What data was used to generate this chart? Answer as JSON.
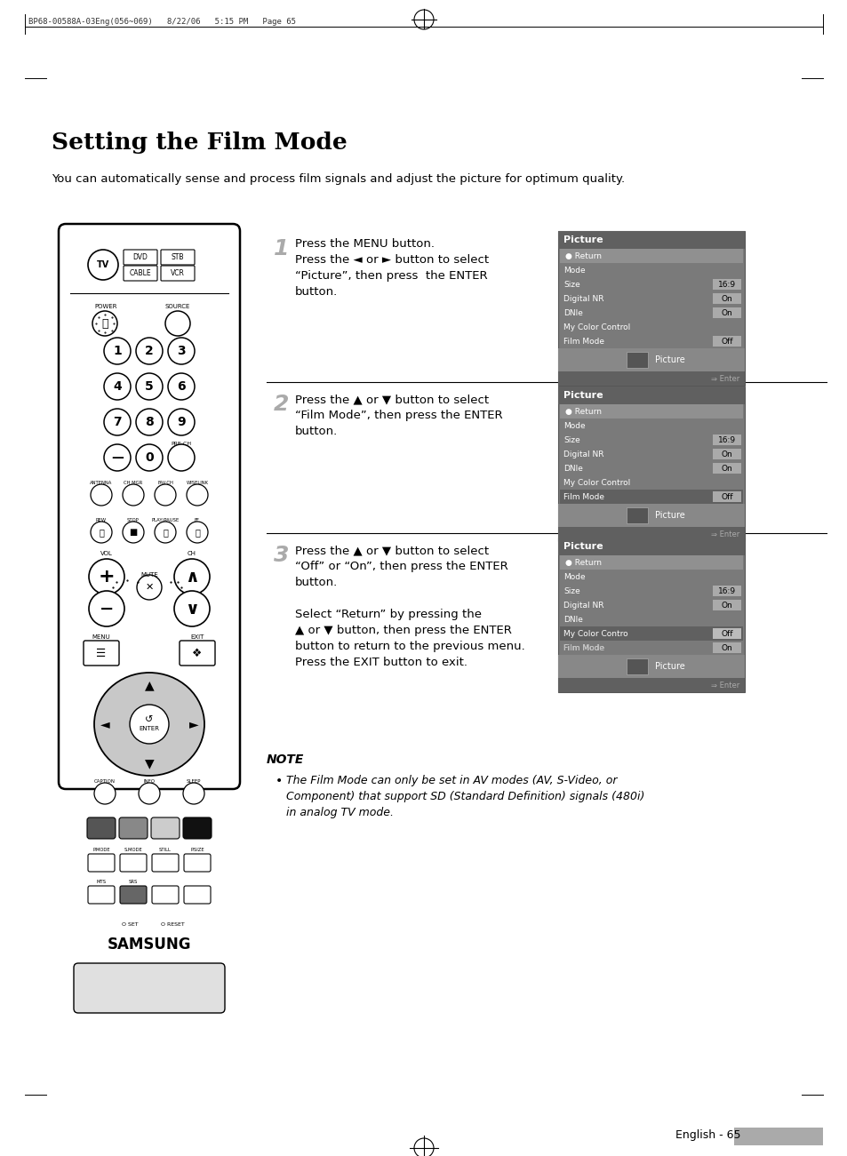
{
  "title": "Setting the Film Mode",
  "subtitle": "You can automatically sense and process film signals and adjust the picture for optimum quality.",
  "page_header": "BP68-00588A-03Eng(056~069)   8/22/06   5:15 PM   Page 65",
  "step1_num": "1",
  "step1_text": "Press the MENU button.\nPress the ◄ or ► button to select\n“Picture”, then press  the ENTER\nbutton.",
  "step2_num": "2",
  "step2_text": "Press the ▲ or ▼ button to select\n“Film Mode”, then press the ENTER\nbutton.",
  "step3_num": "3",
  "step3_text": "Press the ▲ or ▼ button to select\n“Off” or “On”, then press the ENTER\nbutton.\n\nSelect “Return” by pressing the\n▲ or ▼ button, then press the ENTER\nbutton to return to the previous menu.\nPress the EXIT button to exit.",
  "note_title": "NOTE",
  "note_text": "The Film Mode can only be set in AV modes (AV, S-Video, or\nComponent) that support SD (Standard Definition) signals (480i)\nin analog TV mode.",
  "footer": "English - 65",
  "bg_color": "#ffffff",
  "text_color": "#000000",
  "menu_bg": "#7a7a7a",
  "menu_header_bg": "#606060",
  "menu_return_bg": "#909090",
  "menu_value_bg": "#aaaaaa",
  "menu_filmmode_highlight": "#888888",
  "menu_bottom_bg": "#888888",
  "menu_enter_bg": "#606060"
}
